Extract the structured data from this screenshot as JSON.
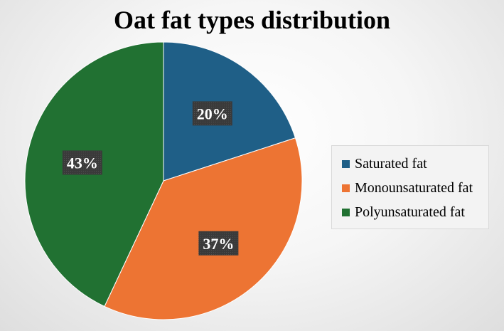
{
  "chart_data": {
    "type": "pie",
    "title": "Oat fat types distribution",
    "categories": [
      "Saturated fat",
      "Monounsaturated fat",
      "Polyunsaturated fat"
    ],
    "values": [
      20,
      37,
      43
    ],
    "labels": [
      "20%",
      "37%",
      "43%"
    ],
    "colors": [
      "#1f5f87",
      "#ed7433",
      "#217132"
    ],
    "legend_position": "right"
  }
}
